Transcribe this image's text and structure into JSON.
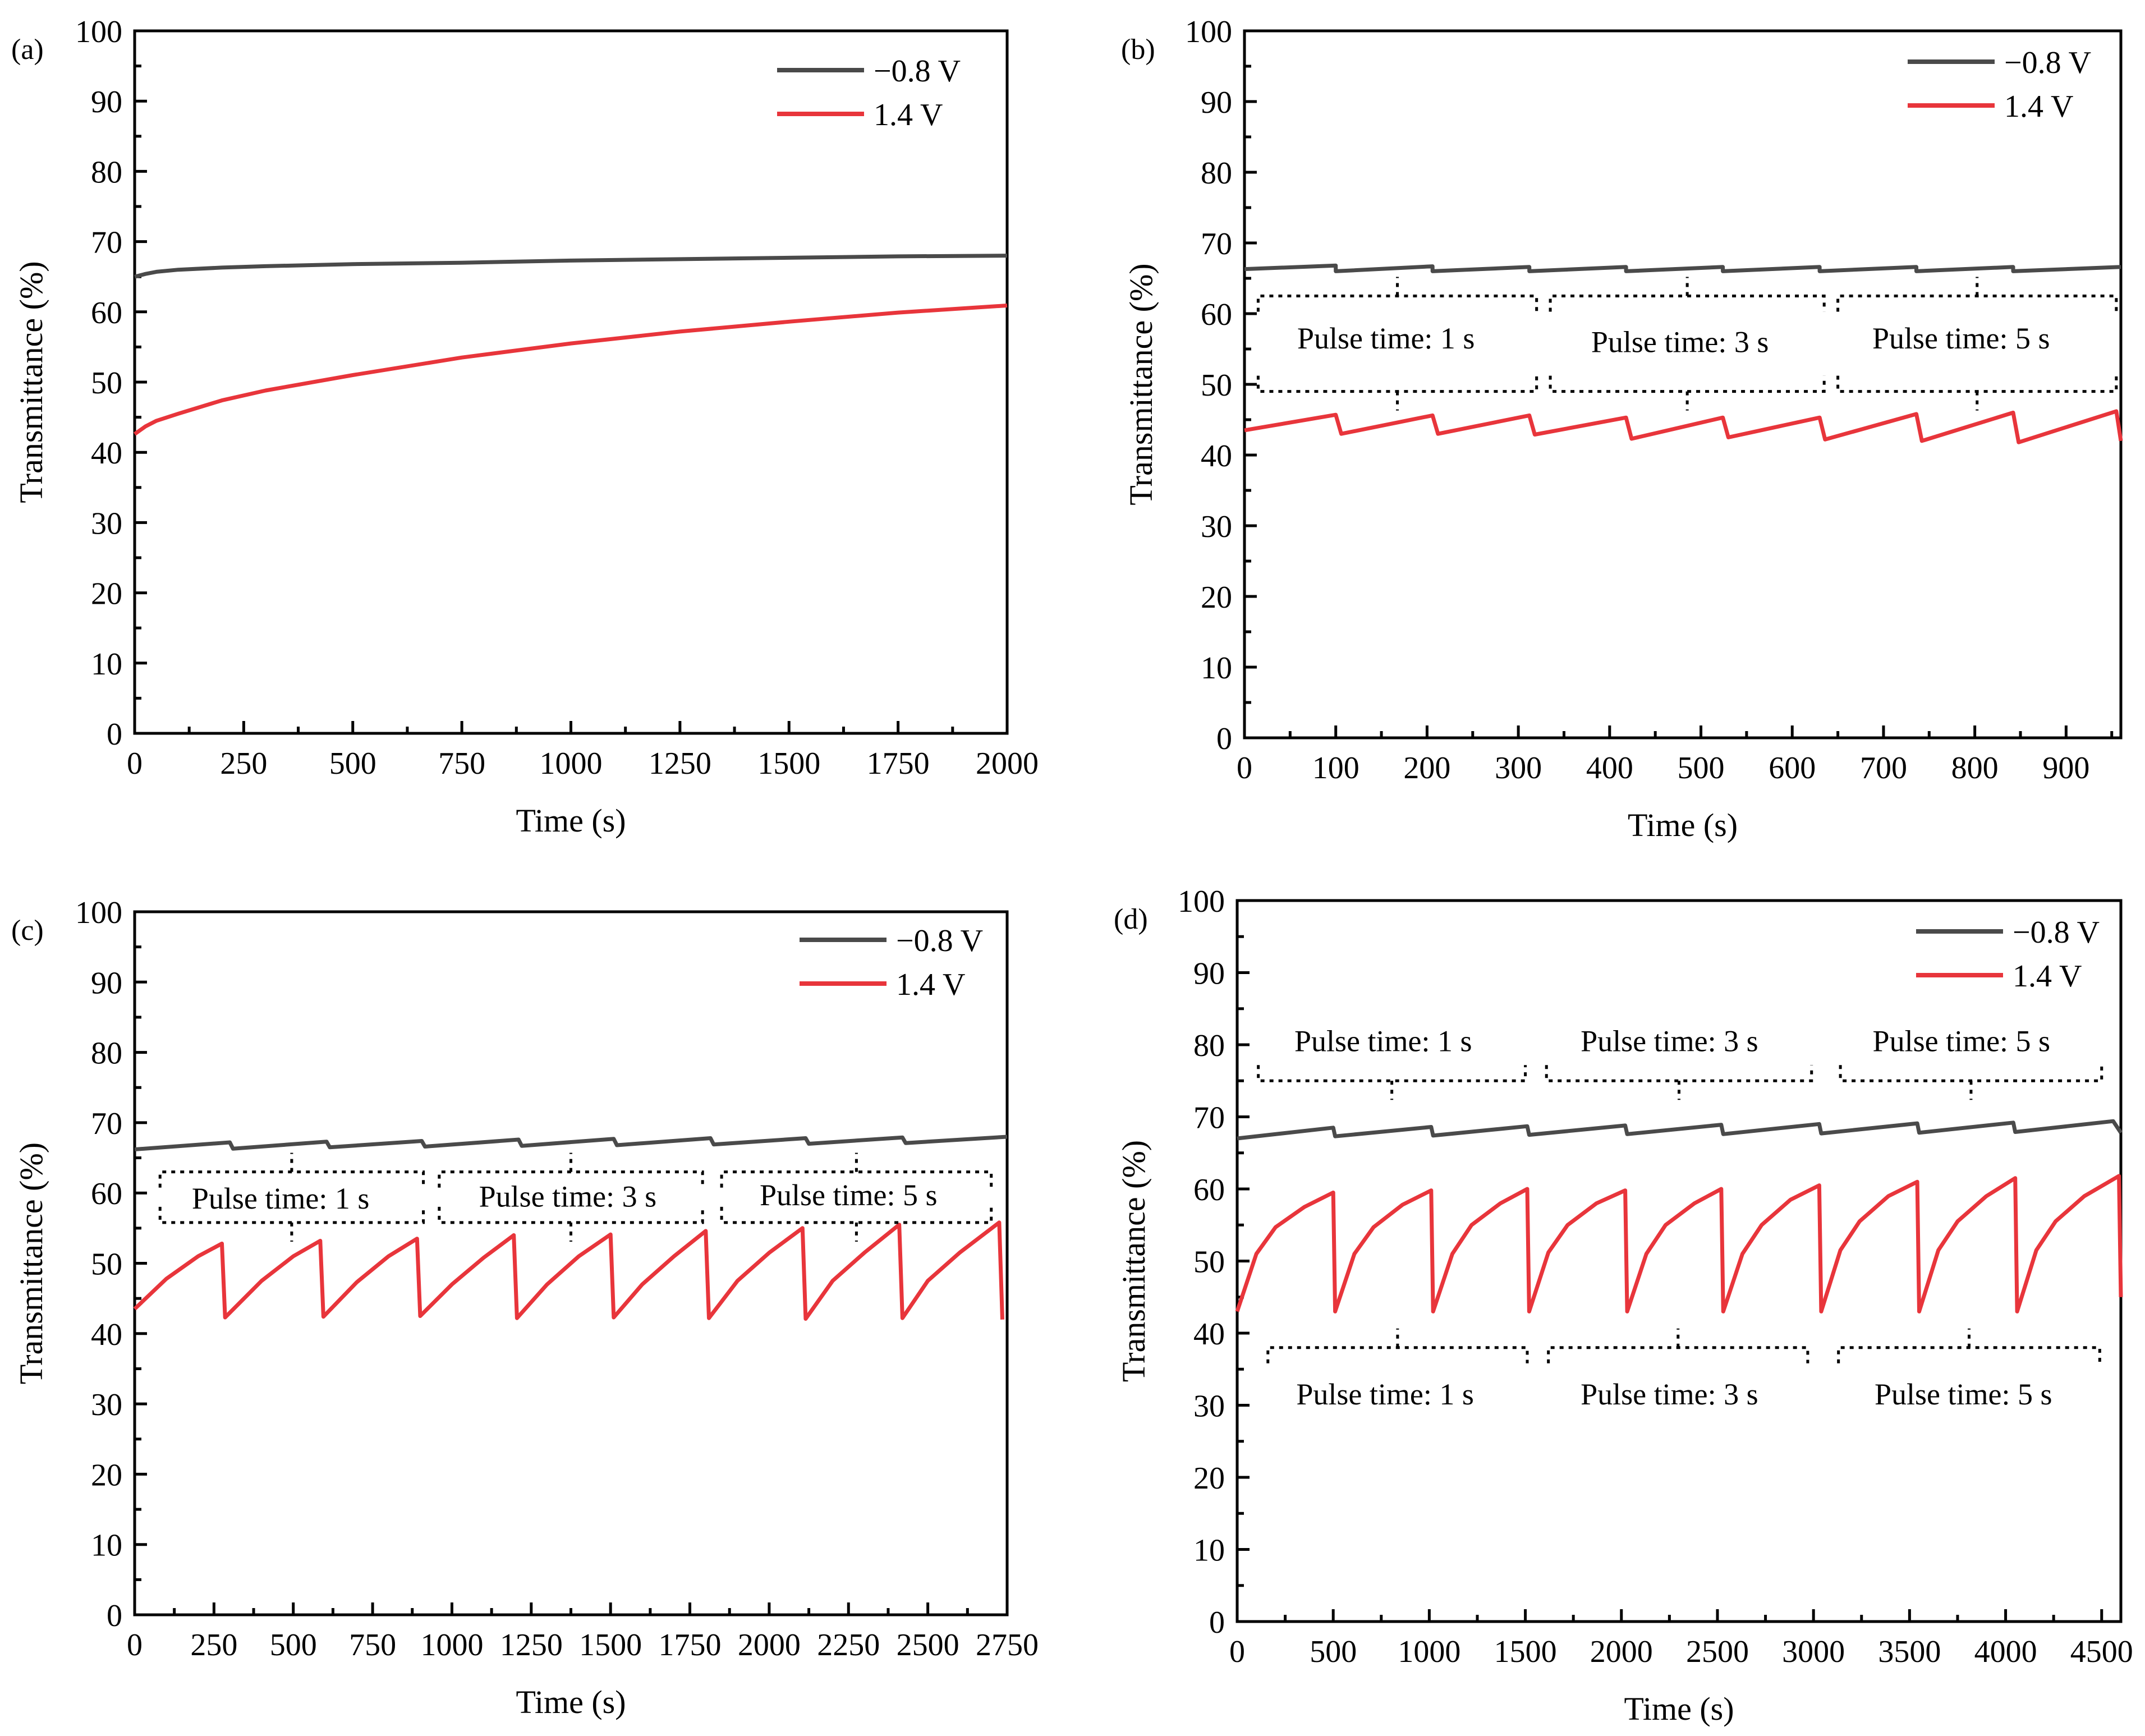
{
  "colors": {
    "neg": "#4a4a4a",
    "pos": "#e8353b"
  },
  "chart_data": [
    {
      "type": "line",
      "label": "(a)",
      "xlabel": "Time (s)",
      "ylabel": "Transmittance (%)",
      "xlim": [
        0,
        2000
      ],
      "ylim": [
        0,
        100
      ],
      "xticks": [
        0,
        250,
        500,
        750,
        1000,
        1250,
        1500,
        1750,
        2000
      ],
      "yticks": [
        0,
        10,
        20,
        30,
        40,
        50,
        60,
        70,
        80,
        90,
        100
      ],
      "xtick_labels": [
        "0",
        "250",
        "500",
        "750",
        "1000",
        "1250",
        "1500",
        "1750",
        "2000"
      ],
      "ytick_labels": [
        "0",
        "10",
        "20",
        "30",
        "40",
        "50",
        "60",
        "70",
        "80",
        "90",
        "100"
      ],
      "legend": [
        "−0.8 V",
        "1.4 V"
      ],
      "series": [
        {
          "name": "−0.8 V",
          "x": [
            0,
            25,
            50,
            100,
            200,
            300,
            500,
            750,
            1000,
            1250,
            1500,
            1750,
            2000
          ],
          "y": [
            65.0,
            65.4,
            65.7,
            66.0,
            66.3,
            66.5,
            66.8,
            67.0,
            67.3,
            67.5,
            67.7,
            67.9,
            68.0
          ]
        },
        {
          "name": "1.4 V",
          "x": [
            0,
            25,
            50,
            100,
            200,
            300,
            500,
            750,
            1000,
            1250,
            1500,
            1750,
            2000
          ],
          "y": [
            42.6,
            43.7,
            44.5,
            45.5,
            47.4,
            48.8,
            51.0,
            53.5,
            55.5,
            57.2,
            58.6,
            59.9,
            60.9
          ]
        }
      ],
      "annotations": []
    },
    {
      "type": "line",
      "label": "(b)",
      "xlabel": "Time (s)",
      "ylabel": "Transmittance (%)",
      "xlim": [
        0,
        960
      ],
      "ylim": [
        0,
        100
      ],
      "xticks": [
        0,
        100,
        200,
        300,
        400,
        500,
        600,
        700,
        800,
        900
      ],
      "yticks": [
        0,
        10,
        20,
        30,
        40,
        50,
        60,
        70,
        80,
        90,
        100
      ],
      "xtick_labels": [
        "0",
        "100",
        "200",
        "300",
        "400",
        "500",
        "600",
        "700",
        "800",
        "900"
      ],
      "ytick_labels": [
        "0",
        "10",
        "20",
        "30",
        "40",
        "50",
        "60",
        "70",
        "80",
        "90",
        "100"
      ],
      "legend": [
        "−0.8 V",
        "1.4 V"
      ],
      "series": [
        {
          "name": "−0.8 V",
          "x": [
            0,
            100,
            100,
            206,
            206,
            312,
            312,
            418,
            418,
            524,
            524,
            630,
            630,
            736,
            736,
            842,
            842,
            960
          ],
          "y": [
            66.3,
            66.8,
            66.0,
            66.7,
            66.0,
            66.6,
            66.0,
            66.6,
            66.0,
            66.6,
            66.0,
            66.6,
            66.0,
            66.6,
            66.0,
            66.6,
            66.0,
            66.6
          ]
        },
        {
          "name": "1.4 V",
          "x": [
            0,
            100,
            106,
            206,
            212,
            312,
            318,
            418,
            424,
            524,
            530,
            630,
            636,
            736,
            742,
            842,
            848,
            955,
            960
          ],
          "y": [
            43.5,
            45.7,
            43.0,
            45.6,
            43.0,
            45.6,
            42.9,
            45.3,
            42.3,
            45.3,
            42.5,
            45.3,
            42.2,
            45.8,
            42.0,
            46.0,
            41.8,
            46.2,
            42.0
          ]
        }
      ],
      "annotations": [
        {
          "text": "Pulse time: 1 s",
          "x": 155,
          "y": 56.5
        },
        {
          "text": "Pulse time: 3 s",
          "x": 477,
          "y": 56.0
        },
        {
          "text": "Pulse time: 5 s",
          "x": 785,
          "y": 56.5
        }
      ],
      "brackets": [
        {
          "x0": 15,
          "x1": 320,
          "y": 62.5,
          "dir": "up"
        },
        {
          "x0": 335,
          "x1": 635,
          "y": 62.5,
          "dir": "up"
        },
        {
          "x0": 650,
          "x1": 955,
          "y": 62.5,
          "dir": "up"
        },
        {
          "x0": 15,
          "x1": 320,
          "y": 49.0,
          "dir": "down"
        },
        {
          "x0": 335,
          "x1": 635,
          "y": 49.0,
          "dir": "down"
        },
        {
          "x0": 650,
          "x1": 955,
          "y": 49.0,
          "dir": "down"
        }
      ]
    },
    {
      "type": "line",
      "label": "(c)",
      "xlabel": "Time (s)",
      "ylabel": "Transmittance (%)",
      "xlim": [
        0,
        2750
      ],
      "ylim": [
        0,
        100
      ],
      "xticks": [
        0,
        250,
        500,
        750,
        1000,
        1250,
        1500,
        1750,
        2000,
        2250,
        2500,
        2750
      ],
      "yticks": [
        0,
        10,
        20,
        30,
        40,
        50,
        60,
        70,
        80,
        90,
        100
      ],
      "xtick_labels": [
        "0",
        "250",
        "500",
        "750",
        "1000",
        "1250",
        "1500",
        "1750",
        "2000",
        "2250",
        "2500",
        "2750"
      ],
      "ytick_labels": [
        "0",
        "10",
        "20",
        "30",
        "40",
        "50",
        "60",
        "70",
        "80",
        "90",
        "100"
      ],
      "legend": [
        "−0.8 V",
        "1.4 V"
      ],
      "series": [
        {
          "name": "−0.8 V",
          "x": [
            0,
            300,
            310,
            605,
            615,
            905,
            915,
            1210,
            1220,
            1510,
            1520,
            1815,
            1825,
            2115,
            2125,
            2420,
            2430,
            2750
          ],
          "y": [
            66.2,
            67.2,
            66.3,
            67.3,
            66.5,
            67.4,
            66.6,
            67.6,
            66.7,
            67.7,
            66.8,
            67.8,
            66.9,
            67.8,
            67.0,
            67.9,
            67.1,
            68.0
          ]
        },
        {
          "name": "1.4 V",
          "x": [
            0,
            100,
            200,
            275,
            285,
            400,
            500,
            585,
            595,
            700,
            800,
            890,
            900,
            1000,
            1100,
            1195,
            1205,
            1300,
            1400,
            1500,
            1510,
            1600,
            1700,
            1800,
            1810,
            1900,
            2000,
            2105,
            2115,
            2200,
            2300,
            2410,
            2420,
            2500,
            2600,
            2725,
            2735
          ],
          "y": [
            43.5,
            47.8,
            51.0,
            52.8,
            42.3,
            47.5,
            51.0,
            53.2,
            42.4,
            47.3,
            51.0,
            53.5,
            42.5,
            47.0,
            50.8,
            54.0,
            42.2,
            47.0,
            51.0,
            54.1,
            42.3,
            47.0,
            51.0,
            54.6,
            42.2,
            47.5,
            51.5,
            55.0,
            42.1,
            47.5,
            51.5,
            55.5,
            42.2,
            47.5,
            51.5,
            55.8,
            42.0
          ]
        }
      ],
      "annotations": [
        {
          "text": "Pulse time: 1 s",
          "x": 460,
          "y": 59.2
        },
        {
          "text": "Pulse time: 3 s",
          "x": 1365,
          "y": 59.5
        },
        {
          "text": "Pulse time: 5 s",
          "x": 2250,
          "y": 59.7
        }
      ],
      "brackets": [
        {
          "x0": 80,
          "x1": 910,
          "y": 63.0,
          "dir": "up"
        },
        {
          "x0": 960,
          "x1": 1790,
          "y": 63.0,
          "dir": "up"
        },
        {
          "x0": 1850,
          "x1": 2700,
          "y": 63.0,
          "dir": "up"
        },
        {
          "x0": 80,
          "x1": 910,
          "y": 55.8,
          "dir": "down"
        },
        {
          "x0": 960,
          "x1": 1790,
          "y": 55.8,
          "dir": "down"
        },
        {
          "x0": 1850,
          "x1": 2700,
          "y": 55.8,
          "dir": "down"
        }
      ]
    },
    {
      "type": "line",
      "label": "(d)",
      "xlabel": "Time (s)",
      "ylabel": "Transmittance (%)",
      "xlim": [
        0,
        4600
      ],
      "ylim": [
        0,
        100
      ],
      "xticks": [
        0,
        500,
        1000,
        1500,
        2000,
        2500,
        3000,
        3500,
        4000,
        4500
      ],
      "yticks": [
        0,
        10,
        20,
        30,
        40,
        50,
        60,
        70,
        80,
        90,
        100
      ],
      "xtick_labels": [
        "0",
        "500",
        "1000",
        "1500",
        "2000",
        "2500",
        "3000",
        "3500",
        "4000",
        "4500"
      ],
      "ytick_labels": [
        "0",
        "10",
        "20",
        "30",
        "40",
        "50",
        "60",
        "70",
        "80",
        "90",
        "100"
      ],
      "legend": [
        "−0.8 V",
        "1.4 V"
      ],
      "series": [
        {
          "name": "−0.8 V",
          "x": [
            0,
            500,
            510,
            1010,
            1020,
            1510,
            1520,
            2020,
            2030,
            2520,
            2530,
            3030,
            3040,
            3540,
            3550,
            4040,
            4050,
            4560,
            4600
          ],
          "y": [
            67.0,
            68.5,
            67.3,
            68.6,
            67.4,
            68.7,
            67.5,
            68.8,
            67.6,
            68.9,
            67.6,
            69.0,
            67.7,
            69.1,
            67.8,
            69.2,
            67.9,
            69.4,
            67.8
          ]
        },
        {
          "name": "1.4 V",
          "x": [
            0,
            100,
            200,
            350,
            500,
            510,
            610,
            710,
            860,
            1010,
            1020,
            1120,
            1220,
            1370,
            1510,
            1520,
            1620,
            1720,
            1870,
            2020,
            2030,
            2130,
            2230,
            2380,
            2520,
            2530,
            2630,
            2730,
            2880,
            3030,
            3040,
            3140,
            3240,
            3390,
            3540,
            3550,
            3650,
            3750,
            3900,
            4050,
            4060,
            4160,
            4260,
            4410,
            4590,
            4600
          ],
          "y": [
            43.0,
            51.0,
            54.7,
            57.5,
            59.5,
            43.0,
            51.0,
            54.7,
            57.8,
            59.8,
            43.0,
            51.0,
            55.0,
            58.0,
            60.0,
            43.0,
            51.2,
            55.0,
            58.0,
            59.8,
            43.0,
            51.0,
            55.0,
            58.0,
            60.0,
            43.0,
            51.0,
            55.0,
            58.5,
            60.5,
            43.0,
            51.5,
            55.5,
            59.0,
            61.0,
            43.0,
            51.5,
            55.5,
            59.0,
            61.5,
            43.0,
            51.5,
            55.5,
            59.0,
            61.8,
            45.0
          ]
        }
      ],
      "annotations": [
        {
          "text": "Pulse time: 1 s",
          "x": 760,
          "y": 80.5
        },
        {
          "text": "Pulse time: 3 s",
          "x": 2250,
          "y": 80.5
        },
        {
          "text": "Pulse time: 5 s",
          "x": 3770,
          "y": 80.5
        },
        {
          "text": "Pulse time: 1 s",
          "x": 770,
          "y": 31.5
        },
        {
          "text": "Pulse time: 3 s",
          "x": 2250,
          "y": 31.5
        },
        {
          "text": "Pulse time: 5 s",
          "x": 3780,
          "y": 31.5
        }
      ],
      "brackets": [
        {
          "x0": 110,
          "x1": 1500,
          "y": 75.0,
          "dir": "down"
        },
        {
          "x0": 1610,
          "x1": 2990,
          "y": 75.0,
          "dir": "down"
        },
        {
          "x0": 3140,
          "x1": 4500,
          "y": 75.0,
          "dir": "down"
        },
        {
          "x0": 160,
          "x1": 1510,
          "y": 38.0,
          "dir": "up"
        },
        {
          "x0": 1620,
          "x1": 2970,
          "y": 38.0,
          "dir": "up"
        },
        {
          "x0": 3130,
          "x1": 4490,
          "y": 38.0,
          "dir": "up"
        }
      ]
    }
  ]
}
